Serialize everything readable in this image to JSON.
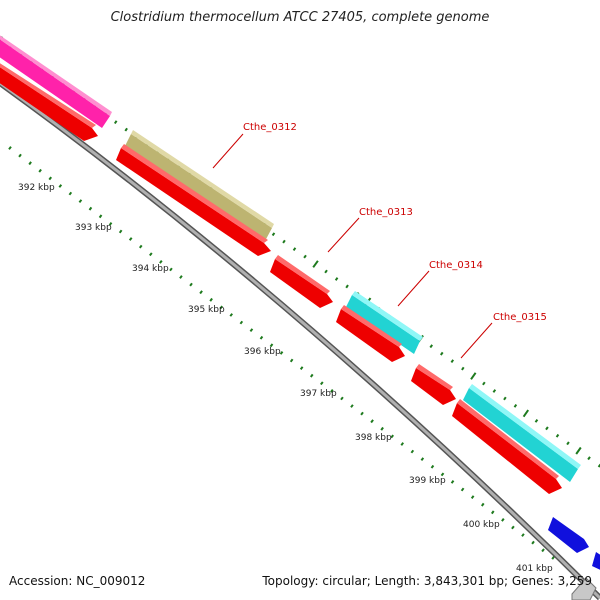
{
  "title": "Clostridium thermocellum ATCC 27405, complete genome",
  "accession_label": "Accession: NC_009012",
  "summary_label": "Topology: circular; Length: 3,843,301 bp; Genes: 3,259",
  "colors": {
    "backbone": "#8a8a8a",
    "tick": "#1e7a1e",
    "label": "#cc0000",
    "red": "#ee0000",
    "magenta": "#ff22aa",
    "khaki": "#bdb471",
    "cyan": "#22d3d3",
    "cyan_light": "#2ff5f5",
    "blue": "#1010dd"
  },
  "ticks": [
    "392 kbp",
    "393 kbp",
    "394 kbp",
    "395 kbp",
    "396 kbp",
    "397 kbp",
    "398 kbp",
    "399 kbp",
    "400 kbp",
    "401 kbp"
  ],
  "genes": [
    "Cthe_0312",
    "Cthe_0313",
    "Cthe_0314",
    "Cthe_0315"
  ]
}
